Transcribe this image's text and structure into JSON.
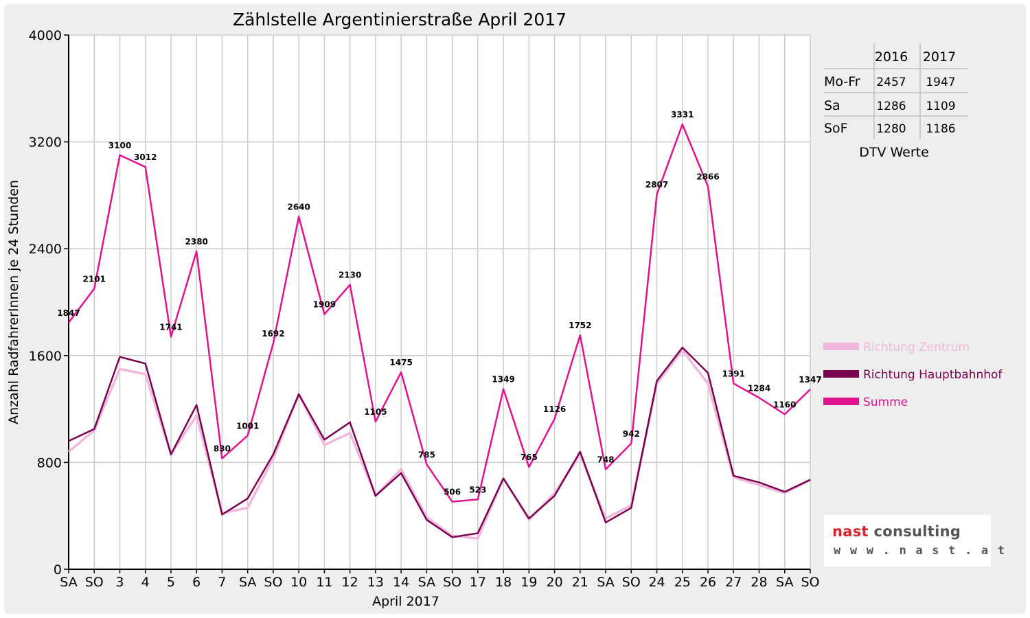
{
  "chart_data": {
    "type": "line",
    "title": "Zählstelle Argentinierstraße April 2017",
    "xlabel": "April 2017",
    "ylabel": "Anzahl RadfahrerInnen je 24 Stunden",
    "ylim": [
      0,
      4000
    ],
    "yticks": [
      "0",
      "800",
      "1600",
      "2400",
      "3200",
      "4000"
    ],
    "grid": true,
    "legend_position": "right",
    "categories": [
      "SA",
      "SO",
      "3",
      "4",
      "5",
      "6",
      "7",
      "SA",
      "SO",
      "10",
      "11",
      "12",
      "13",
      "14",
      "SA",
      "SO",
      "17",
      "18",
      "19",
      "20",
      "21",
      "SA",
      "SO",
      "24",
      "25",
      "26",
      "27",
      "28",
      "SA",
      "SO"
    ],
    "red_categories": [
      1,
      8,
      15,
      16,
      22,
      29
    ],
    "series": [
      {
        "name": "Richtung Zentrum",
        "color": "#f0b8dc",
        "values": [
          880,
          1040,
          1500,
          1460,
          860,
          1150,
          420,
          460,
          830,
          1310,
          930,
          1020,
          550,
          750,
          390,
          250,
          230,
          680,
          370,
          570,
          860,
          380,
          480,
          1390,
          1640,
          1390,
          690,
          630,
          570,
          670
        ]
      },
      {
        "name": "Richtung Hauptbahnhof",
        "color": "#7a0050",
        "values": [
          960,
          1050,
          1590,
          1540,
          860,
          1230,
          410,
          530,
          860,
          1310,
          970,
          1100,
          550,
          720,
          370,
          240,
          270,
          680,
          380,
          550,
          880,
          350,
          460,
          1410,
          1660,
          1470,
          700,
          650,
          580,
          670
        ]
      },
      {
        "name": "Summe",
        "color": "#e0128e",
        "values": [
          1847,
          2101,
          3100,
          3012,
          1741,
          2380,
          830,
          1001,
          1692,
          2640,
          1909,
          2130,
          1105,
          1475,
          785,
          506,
          523,
          1349,
          765,
          1126,
          1752,
          748,
          942,
          2807,
          3331,
          2866,
          1391,
          1284,
          1160,
          1347
        ]
      }
    ],
    "data_labels": [
      "1847",
      "2101",
      "3100",
      "3012",
      "1741",
      "2380",
      "830",
      "1001",
      "1692",
      "2640",
      "1909",
      "2130",
      "1105",
      "1475",
      "785",
      "506",
      "523",
      "1349",
      "765",
      "1126",
      "1752",
      "748",
      "942",
      "2807",
      "3331",
      "2866",
      "1391",
      "1284",
      "1160",
      "1347"
    ],
    "dtv_table": {
      "headers": [
        "",
        "2016",
        "2017"
      ],
      "rows": [
        [
          "Mo-Fr",
          "2457",
          "1947"
        ],
        [
          "Sa",
          "1286",
          "1109"
        ],
        [
          "SoF",
          "1280",
          "1186"
        ]
      ],
      "caption": "DTV Werte"
    }
  },
  "logo": {
    "brand": "nast",
    "word": "consulting",
    "url": "w w w . n a s t . a t"
  },
  "colors": {
    "red_label": "#ff0000",
    "grid": "#cccccc",
    "plot_background": "#ffffff",
    "frame_background": "#eeeeee"
  }
}
